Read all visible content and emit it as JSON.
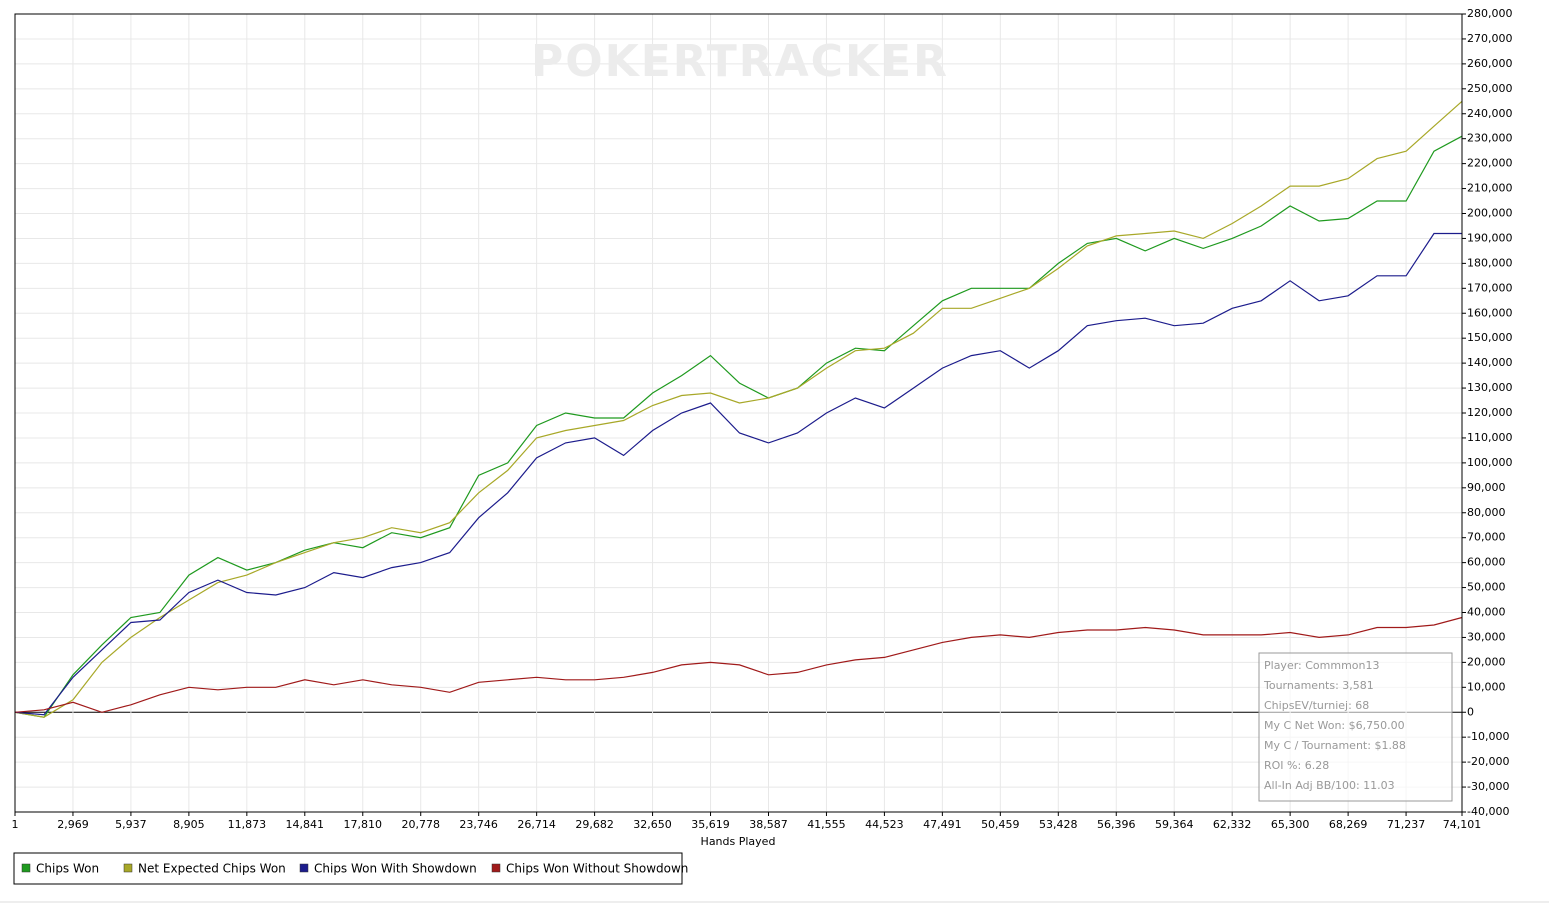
{
  "chart_data": {
    "type": "line",
    "watermark": "POKERTRACKER",
    "xlabel": "Hands Played",
    "x": [
      1,
      1485,
      2969,
      4453,
      5937,
      7421,
      8905,
      10389,
      11873,
      13357,
      14841,
      16326,
      17810,
      19294,
      20778,
      22262,
      23746,
      25230,
      26714,
      28198,
      29682,
      31166,
      32650,
      34135,
      35619,
      37103,
      38587,
      40071,
      41555,
      43039,
      44523,
      46007,
      47491,
      48975,
      50459,
      51944,
      53428,
      54912,
      56396,
      57880,
      59364,
      60848,
      62332,
      63816,
      65300,
      66785,
      68269,
      69753,
      71237,
      72669,
      74101
    ],
    "series": [
      {
        "name": "Chips Won",
        "color": "#1f9a1f",
        "values": [
          0,
          -2000,
          15000,
          27000,
          38000,
          40000,
          55000,
          62000,
          57000,
          60000,
          65000,
          68000,
          66000,
          72000,
          70000,
          74000,
          95000,
          100000,
          115000,
          120000,
          118000,
          118000,
          128000,
          135000,
          143000,
          132000,
          126000,
          130000,
          140000,
          146000,
          145000,
          155000,
          165000,
          170000,
          170000,
          170000,
          180000,
          188000,
          190000,
          185000,
          190000,
          186000,
          190000,
          195000,
          203000,
          197000,
          198000,
          205000,
          205000,
          225000,
          231000
        ]
      },
      {
        "name": "Net Expected Chips Won",
        "color": "#a8a828",
        "values": [
          0,
          -2000,
          5000,
          20000,
          30000,
          38000,
          45000,
          52000,
          55000,
          60000,
          64000,
          68000,
          70000,
          74000,
          72000,
          76000,
          88000,
          97000,
          110000,
          113000,
          115000,
          117000,
          123000,
          127000,
          128000,
          124000,
          126000,
          130000,
          138000,
          145000,
          146000,
          152000,
          162000,
          162000,
          166000,
          170000,
          178000,
          187000,
          191000,
          192000,
          193000,
          190000,
          196000,
          203000,
          211000,
          211000,
          214000,
          222000,
          225000,
          235000,
          245000
        ]
      },
      {
        "name": "Chips Won With Showdown",
        "color": "#1c1c8c",
        "values": [
          0,
          -1000,
          14000,
          25000,
          36000,
          37000,
          48000,
          53000,
          48000,
          47000,
          50000,
          56000,
          54000,
          58000,
          60000,
          64000,
          78000,
          88000,
          102000,
          108000,
          110000,
          103000,
          113000,
          120000,
          124000,
          112000,
          108000,
          112000,
          120000,
          126000,
          122000,
          130000,
          138000,
          143000,
          145000,
          138000,
          145000,
          155000,
          157000,
          158000,
          155000,
          156000,
          162000,
          165000,
          173000,
          165000,
          167000,
          175000,
          175000,
          192000,
          192000
        ]
      },
      {
        "name": "Chips Won Without Showdown",
        "color": "#a01a1a",
        "values": [
          0,
          1000,
          4000,
          0,
          3000,
          7000,
          10000,
          9000,
          10000,
          10000,
          13000,
          11000,
          13000,
          11000,
          10000,
          8000,
          12000,
          13000,
          14000,
          13000,
          13000,
          14000,
          16000,
          19000,
          20000,
          19000,
          15000,
          16000,
          19000,
          21000,
          22000,
          25000,
          28000,
          30000,
          31000,
          30000,
          32000,
          33000,
          33000,
          34000,
          33000,
          31000,
          31000,
          31000,
          32000,
          30000,
          31000,
          34000,
          34000,
          35000,
          38000
        ]
      }
    ],
    "xlim": [
      1,
      74101
    ],
    "xticks": [
      1,
      {
        "value": 2969,
        "label": "2,969"
      },
      {
        "value": 5937,
        "label": "5,937"
      },
      {
        "value": 8905,
        "label": "8,905"
      },
      {
        "value": 11873,
        "label": "11,873"
      },
      {
        "value": 14841,
        "label": "14,841"
      },
      {
        "value": 17810,
        "label": "17,810"
      },
      {
        "value": 20778,
        "label": "20,778"
      },
      {
        "value": 23746,
        "label": "23,746"
      },
      {
        "value": 26714,
        "label": "26,714"
      },
      {
        "value": 29682,
        "label": "29,682"
      },
      {
        "value": 32650,
        "label": "32,650"
      },
      {
        "value": 35619,
        "label": "35,619"
      },
      {
        "value": 38587,
        "label": "38,587"
      },
      {
        "value": 41555,
        "label": "41,555"
      },
      {
        "value": 44523,
        "label": "44,523"
      },
      {
        "value": 47491,
        "label": "47,491"
      },
      {
        "value": 50459,
        "label": "50,459"
      },
      {
        "value": 53428,
        "label": "53,428"
      },
      {
        "value": 56396,
        "label": "56,396"
      },
      {
        "value": 59364,
        "label": "59,364"
      },
      {
        "value": 62332,
        "label": "62,332"
      },
      {
        "value": 65300,
        "label": "65,300"
      },
      {
        "value": 68269,
        "label": "68,269"
      },
      {
        "value": 71237,
        "label": "71,237"
      },
      {
        "value": 74101,
        "label": "74,101"
      }
    ],
    "ylim": [
      -40000,
      280000
    ],
    "yticks": [
      {
        "value": -40000,
        "label": "-40,000"
      },
      {
        "value": -30000,
        "label": "-30,000"
      },
      {
        "value": -20000,
        "label": "-20,000"
      },
      {
        "value": -10000,
        "label": "-10,000"
      },
      0,
      {
        "value": 10000,
        "label": "10,000"
      },
      {
        "value": 20000,
        "label": "20,000"
      },
      {
        "value": 30000,
        "label": "30,000"
      },
      {
        "value": 40000,
        "label": "40,000"
      },
      {
        "value": 50000,
        "label": "50,000"
      },
      {
        "value": 60000,
        "label": "60,000"
      },
      {
        "value": 70000,
        "label": "70,000"
      },
      {
        "value": 80000,
        "label": "80,000"
      },
      {
        "value": 90000,
        "label": "90,000"
      },
      {
        "value": 100000,
        "label": "100,000"
      },
      {
        "value": 110000,
        "label": "110,000"
      },
      {
        "value": 120000,
        "label": "120,000"
      },
      {
        "value": 130000,
        "label": "130,000"
      },
      {
        "value": 140000,
        "label": "140,000"
      },
      {
        "value": 150000,
        "label": "150,000"
      },
      {
        "value": 160000,
        "label": "160,000"
      },
      {
        "value": 170000,
        "label": "170,000"
      },
      {
        "value": 180000,
        "label": "180,000"
      },
      {
        "value": 190000,
        "label": "190,000"
      },
      {
        "value": 200000,
        "label": "200,000"
      },
      {
        "value": 210000,
        "label": "210,000"
      },
      {
        "value": 220000,
        "label": "220,000"
      },
      {
        "value": 230000,
        "label": "230,000"
      },
      {
        "value": 240000,
        "label": "240,000"
      },
      {
        "value": 250000,
        "label": "250,000"
      },
      {
        "value": 260000,
        "label": "260,000"
      },
      {
        "value": 270000,
        "label": "270,000"
      },
      {
        "value": 280000,
        "label": "280,000"
      }
    ],
    "grid": true,
    "legend": "bottom-left",
    "info_box": [
      "Player: Commmon13",
      "Tournaments: 3,581",
      "ChipsEV/turniej: 68",
      "My C Net Won: $6,750.00",
      "My C / Tournament: $1.88",
      "ROI %: 6.28",
      "All-In Adj BB/100: 11.03"
    ]
  }
}
